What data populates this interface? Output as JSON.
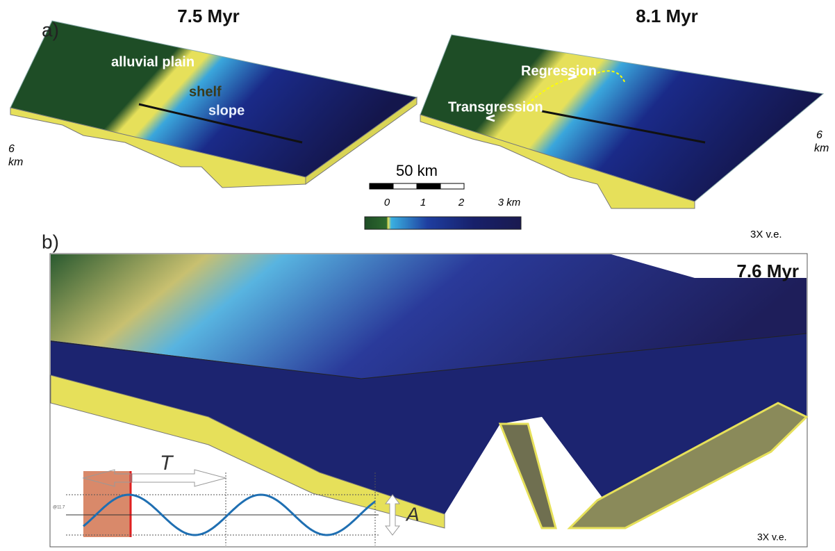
{
  "panel_a": {
    "label": "a)",
    "left_title": "7.5 Myr",
    "right_title": "8.1 Myr",
    "left_annotations": [
      "alluvial plain",
      "shelf",
      "slope"
    ],
    "right_annotations": [
      "Regression",
      "Transgression"
    ],
    "left_depth_scale": "6",
    "left_depth_unit": "km",
    "right_depth_scale": "6",
    "right_depth_unit": "km",
    "scale_bar": "50 km",
    "colorbar_labels": [
      "0",
      "1",
      "2",
      "3 km"
    ],
    "exaggeration": "3X v.e."
  },
  "panel_b": {
    "label": "b)",
    "title": "7.6 Myr",
    "period_label": "T",
    "amplitude_label": "A",
    "sea_level_label": "@11.7",
    "exaggeration": "3X v.e."
  }
}
